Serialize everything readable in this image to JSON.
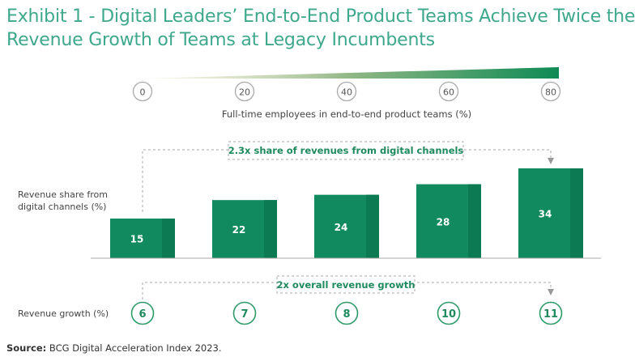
{
  "title": {
    "line1": "Exhibit 1 - Digital Leaders’ End-to-End Product Teams Achieve Twice the",
    "line2": "Revenue Growth of Teams at Legacy Incumbents"
  },
  "colors": {
    "title": "#3ea88c",
    "bar": "#118a5f",
    "bar_shade": "#0c7a52",
    "circle_grey": "#aaaaaa",
    "circle_green": "#2e9a6a",
    "gradient_start": "#d9d0a8",
    "gradient_end": "#0f8a55"
  },
  "scale": {
    "ticks": [
      "0",
      "20",
      "40",
      "60",
      "80"
    ],
    "label": "Full-time employees in end-to-end product teams (%)"
  },
  "chart_data": {
    "type": "bar",
    "title": "Exhibit 1 - Digital Leaders’ End-to-End Product Teams Achieve Twice the Revenue Growth of Teams at Legacy Incumbents",
    "xlabel": "Full-time employees in end-to-end product teams (%)",
    "categories": [
      "0",
      "20",
      "40",
      "60",
      "80"
    ],
    "ylabel": "Revenue share from digital channels (%)",
    "ylabel_lines": [
      "Revenue share from",
      "digital channels (%)"
    ],
    "values": [
      15,
      22,
      24,
      28,
      34
    ],
    "ylim": [
      0,
      34
    ],
    "grid": false,
    "annotation_revenue_share": "2.3x share of revenues from digital channels",
    "growth_label": "Revenue growth (%)",
    "growth_values": [
      6,
      7,
      8,
      10,
      11
    ],
    "annotation_growth": "2x overall revenue growth"
  },
  "source": {
    "label": "Source:",
    "text": " BCG Digital Acceleration Index 2023."
  }
}
